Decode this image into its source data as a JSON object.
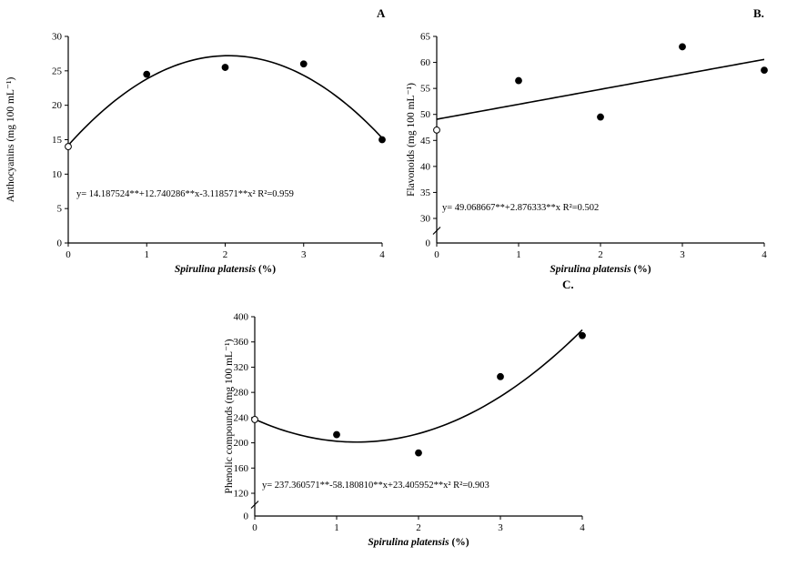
{
  "figure": {
    "background": "#ffffff",
    "ink_color": "#000000",
    "panel_labels": [
      "A",
      "B.",
      "C."
    ]
  },
  "chart_data": [
    {
      "panel": "A",
      "type": "scatter",
      "ylabel": "Anthocyanins (mg 100 mL⁻¹)",
      "xlabel_italic": "Spirulina platensis",
      "xlabel_suffix": " (%)",
      "xmin": 0,
      "xmax": 4,
      "ymin": 0,
      "ymax": 30,
      "xticks": [
        0,
        1,
        2,
        3,
        4
      ],
      "yticks": [
        0,
        5,
        10,
        15,
        20,
        25,
        30
      ],
      "axis_break": false,
      "zero_label": "",
      "points": [
        {
          "x": 0,
          "y": 14,
          "open": true
        },
        {
          "x": 1,
          "y": 24.5,
          "open": false
        },
        {
          "x": 2,
          "y": 25.5,
          "open": false
        },
        {
          "x": 3,
          "y": 26,
          "open": false
        },
        {
          "x": 4,
          "y": 15,
          "open": false
        }
      ],
      "fit": {
        "kind": "poly",
        "coeffs": [
          14.187524,
          12.740286,
          -3.118571
        ]
      },
      "equation": "y= 14.187524**+12.740286**x-3.118571**x² R²=0.959",
      "r_squared": 0.959
    },
    {
      "panel": "B",
      "type": "scatter",
      "ylabel": "Flavonoids (mg 100 mL⁻¹)",
      "xlabel_italic": "Spirulina platensis",
      "xlabel_suffix": " (%)",
      "xmin": 0,
      "xmax": 4,
      "ymin": 30,
      "ymax": 65,
      "xticks": [
        0,
        1,
        2,
        3,
        4
      ],
      "yticks": [
        30,
        35,
        40,
        45,
        50,
        55,
        60,
        65
      ],
      "axis_break": true,
      "zero_label": "0",
      "points": [
        {
          "x": 0,
          "y": 47,
          "open": true
        },
        {
          "x": 1,
          "y": 56.5,
          "open": false
        },
        {
          "x": 2,
          "y": 49.5,
          "open": false
        },
        {
          "x": 3,
          "y": 63,
          "open": false
        },
        {
          "x": 4,
          "y": 58.5,
          "open": false
        }
      ],
      "fit": {
        "kind": "poly",
        "coeffs": [
          49.068667,
          2.876333
        ]
      },
      "equation": "y= 49.068667**+2.876333**x R²=0.502",
      "r_squared": 0.502
    },
    {
      "panel": "C",
      "type": "scatter",
      "ylabel": "Phenolic compounds (mg 100 mL⁻¹)",
      "xlabel_italic": "Spirulina platensis",
      "xlabel_suffix": " (%)",
      "xmin": 0,
      "xmax": 4,
      "ymin": 120,
      "ymax": 400,
      "xticks": [
        0,
        1,
        2,
        3,
        4
      ],
      "yticks": [
        120,
        160,
        200,
        240,
        280,
        320,
        360,
        400
      ],
      "axis_break": true,
      "zero_label": "0",
      "points": [
        {
          "x": 0,
          "y": 237,
          "open": true
        },
        {
          "x": 1,
          "y": 213,
          "open": false
        },
        {
          "x": 2,
          "y": 184,
          "open": false
        },
        {
          "x": 3,
          "y": 305,
          "open": false
        },
        {
          "x": 4,
          "y": 370,
          "open": false
        }
      ],
      "fit": {
        "kind": "poly",
        "coeffs": [
          237.360571,
          -58.18081,
          23.405952
        ]
      },
      "equation": "y= 237.360571**-58.180810**x+23.405952**x² R²=0.903",
      "r_squared": 0.903
    }
  ]
}
